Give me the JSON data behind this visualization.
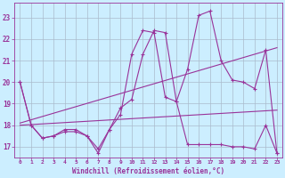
{
  "background_color": "#cceeff",
  "grid_color": "#aabbcc",
  "line_color": "#993399",
  "xlabel": "Windchill (Refroidissement éolien,°C)",
  "xlabel_fontsize": 5.5,
  "xtick_fontsize": 4.5,
  "ytick_fontsize": 5.5,
  "xlim": [
    -0.5,
    23.5
  ],
  "ylim": [
    16.5,
    23.7
  ],
  "yticks": [
    17,
    18,
    19,
    20,
    21,
    22,
    23
  ],
  "xticks": [
    0,
    1,
    2,
    3,
    4,
    5,
    6,
    7,
    8,
    9,
    10,
    11,
    12,
    13,
    14,
    15,
    16,
    17,
    18,
    19,
    20,
    21,
    22,
    23
  ],
  "series1": {
    "x": [
      0,
      1,
      2,
      3,
      4,
      5,
      6,
      7,
      8,
      9,
      10,
      11,
      12,
      13,
      14,
      15,
      16,
      17,
      18,
      19,
      20,
      21,
      22,
      23
    ],
    "y": [
      20.0,
      18.0,
      17.4,
      17.5,
      17.8,
      17.8,
      17.5,
      16.7,
      17.8,
      18.8,
      19.2,
      21.3,
      22.4,
      22.3,
      19.1,
      17.1,
      17.1,
      17.1,
      17.1,
      17.0,
      17.0,
      16.9,
      18.0,
      16.7
    ]
  },
  "series2": {
    "x": [
      0,
      1,
      2,
      3,
      4,
      5,
      6,
      7,
      8,
      9,
      10,
      11,
      12,
      13,
      14,
      15,
      16,
      17,
      18,
      19,
      20,
      21,
      22,
      23
    ],
    "y": [
      20.0,
      18.0,
      17.4,
      17.5,
      17.7,
      17.7,
      17.5,
      16.9,
      17.8,
      18.5,
      21.3,
      22.4,
      22.3,
      19.3,
      19.1,
      20.6,
      23.1,
      23.3,
      21.0,
      20.1,
      20.0,
      19.7,
      21.5,
      16.7
    ]
  },
  "trend1": {
    "x": [
      0,
      23
    ],
    "y": [
      18.0,
      18.7
    ]
  },
  "trend2": {
    "x": [
      0,
      23
    ],
    "y": [
      18.1,
      21.6
    ]
  }
}
